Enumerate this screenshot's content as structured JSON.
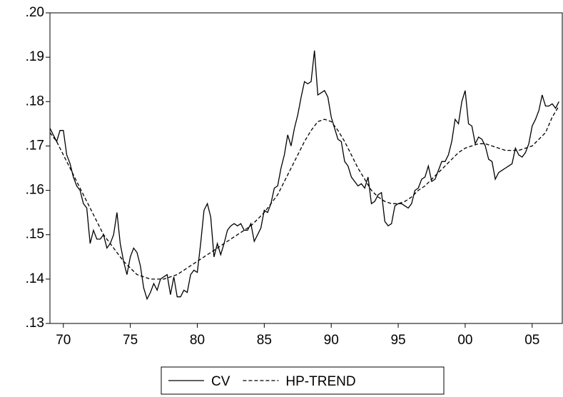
{
  "chart_data": {
    "type": "line",
    "xlim": [
      1969,
      2007.25
    ],
    "xticks": [
      {
        "value": 1970,
        "label": "70"
      },
      {
        "value": 1975,
        "label": "75"
      },
      {
        "value": 1980,
        "label": "80"
      },
      {
        "value": 1985,
        "label": "85"
      },
      {
        "value": 1990,
        "label": "90"
      },
      {
        "value": 1995,
        "label": "95"
      },
      {
        "value": 2000,
        "label": "00"
      },
      {
        "value": 2005,
        "label": "05"
      }
    ],
    "ylim": [
      0.13,
      0.2
    ],
    "yticks": [
      {
        "value": 0.13,
        "label": ".13"
      },
      {
        "value": 0.14,
        "label": ".14"
      },
      {
        "value": 0.15,
        "label": ".15"
      },
      {
        "value": 0.16,
        "label": ".16"
      },
      {
        "value": 0.17,
        "label": ".17"
      },
      {
        "value": 0.18,
        "label": ".18"
      },
      {
        "value": 0.19,
        "label": ".19"
      },
      {
        "value": 0.2,
        "label": ".20"
      }
    ],
    "series": [
      {
        "name": "CV",
        "color": "#000000",
        "dash": "solid",
        "x": [
          1969,
          1969.25,
          1969.5,
          1969.75,
          1970,
          1970.25,
          1970.5,
          1970.75,
          1971,
          1971.25,
          1971.5,
          1971.75,
          1972,
          1972.25,
          1972.5,
          1972.75,
          1973,
          1973.25,
          1973.5,
          1973.75,
          1974,
          1974.25,
          1974.5,
          1974.75,
          1975,
          1975.25,
          1975.5,
          1975.75,
          1976,
          1976.25,
          1976.5,
          1976.75,
          1977,
          1977.25,
          1977.5,
          1977.75,
          1978,
          1978.25,
          1978.5,
          1978.75,
          1979,
          1979.25,
          1979.5,
          1979.75,
          1980,
          1980.25,
          1980.5,
          1980.75,
          1981,
          1981.25,
          1981.5,
          1981.75,
          1982,
          1982.25,
          1982.5,
          1982.75,
          1983,
          1983.25,
          1983.5,
          1983.75,
          1984,
          1984.25,
          1984.5,
          1984.75,
          1985,
          1985.25,
          1985.5,
          1985.75,
          1986,
          1986.25,
          1986.5,
          1986.75,
          1987,
          1987.25,
          1987.5,
          1987.75,
          1988,
          1988.25,
          1988.5,
          1988.75,
          1989,
          1989.25,
          1989.5,
          1989.75,
          1990,
          1990.25,
          1990.5,
          1990.75,
          1991,
          1991.25,
          1991.5,
          1991.75,
          1992,
          1992.25,
          1992.5,
          1992.75,
          1993,
          1993.25,
          1993.5,
          1993.75,
          1994,
          1994.25,
          1994.5,
          1994.75,
          1995,
          1995.25,
          1995.5,
          1995.75,
          1996,
          1996.25,
          1996.5,
          1996.75,
          1997,
          1997.25,
          1997.5,
          1997.75,
          1998,
          1998.25,
          1998.5,
          1998.75,
          1999,
          1999.25,
          1999.5,
          1999.75,
          2000,
          2000.25,
          2000.5,
          2000.75,
          2001,
          2001.25,
          2001.5,
          2001.75,
          2002,
          2002.25,
          2002.5,
          2002.75,
          2003,
          2003.25,
          2003.5,
          2003.75,
          2004,
          2004.25,
          2004.5,
          2004.75,
          2005,
          2005.25,
          2005.5,
          2005.75,
          2006,
          2006.25,
          2006.5,
          2006.75,
          2007
        ],
        "values": [
          0.174,
          0.1725,
          0.171,
          0.1735,
          0.1735,
          0.168,
          0.166,
          0.163,
          0.161,
          0.16,
          0.157,
          0.156,
          0.148,
          0.151,
          0.149,
          0.149,
          0.15,
          0.147,
          0.148,
          0.15,
          0.155,
          0.148,
          0.144,
          0.141,
          0.145,
          0.147,
          0.146,
          0.143,
          0.138,
          0.1355,
          0.137,
          0.139,
          0.1375,
          0.14,
          0.1405,
          0.141,
          0.1365,
          0.1405,
          0.136,
          0.136,
          0.1375,
          0.137,
          0.141,
          0.142,
          0.1415,
          0.148,
          0.1555,
          0.157,
          0.154,
          0.145,
          0.148,
          0.1455,
          0.148,
          0.151,
          0.152,
          0.1525,
          0.152,
          0.1525,
          0.151,
          0.151,
          0.1525,
          0.1485,
          0.15,
          0.1515,
          0.1555,
          0.155,
          0.157,
          0.1605,
          0.161,
          0.165,
          0.168,
          0.1725,
          0.17,
          0.174,
          0.177,
          0.181,
          0.1845,
          0.184,
          0.1845,
          0.1915,
          0.1815,
          0.182,
          0.1825,
          0.181,
          0.1765,
          0.174,
          0.1715,
          0.171,
          0.1665,
          0.1655,
          0.163,
          0.162,
          0.161,
          0.1615,
          0.1605,
          0.163,
          0.157,
          0.1575,
          0.159,
          0.1595,
          0.153,
          0.152,
          0.1525,
          0.1565,
          0.157,
          0.157,
          0.1565,
          0.156,
          0.157,
          0.16,
          0.1605,
          0.1625,
          0.163,
          0.1655,
          0.162,
          0.1625,
          0.1645,
          0.1665,
          0.1665,
          0.168,
          0.171,
          0.176,
          0.175,
          0.18,
          0.1825,
          0.175,
          0.1745,
          0.1705,
          0.172,
          0.1715,
          0.17,
          0.167,
          0.1665,
          0.1625,
          0.164,
          0.1645,
          0.165,
          0.1655,
          0.166,
          0.1695,
          0.168,
          0.1675,
          0.1685,
          0.1705,
          0.1745,
          0.176,
          0.178,
          0.1815,
          0.179,
          0.179,
          0.1795,
          0.1785,
          0.18
        ]
      },
      {
        "name": "HP-TREND",
        "color": "#000000",
        "dash": "dashed",
        "x": [
          1969,
          1969.5,
          1970,
          1970.5,
          1971,
          1971.5,
          1972,
          1972.5,
          1973,
          1973.5,
          1974,
          1974.5,
          1975,
          1975.5,
          1976,
          1976.5,
          1977,
          1977.5,
          1978,
          1978.5,
          1979,
          1979.5,
          1980,
          1980.5,
          1981,
          1981.5,
          1982,
          1982.5,
          1983,
          1983.5,
          1984,
          1984.5,
          1985,
          1985.5,
          1986,
          1986.5,
          1987,
          1987.5,
          1988,
          1988.5,
          1989,
          1989.5,
          1990,
          1990.5,
          1991,
          1991.5,
          1992,
          1992.5,
          1993,
          1993.5,
          1994,
          1994.5,
          1995,
          1995.5,
          1996,
          1996.5,
          1997,
          1997.5,
          1998,
          1998.5,
          1999,
          1999.5,
          2000,
          2000.5,
          2001,
          2001.5,
          2002,
          2002.5,
          2003,
          2003.5,
          2004,
          2004.5,
          2005,
          2005.5,
          2006,
          2006.5,
          2007
        ],
        "values": [
          0.173,
          0.171,
          0.168,
          0.165,
          0.162,
          0.159,
          0.156,
          0.153,
          0.15,
          0.148,
          0.146,
          0.144,
          0.1425,
          0.141,
          0.1405,
          0.14,
          0.14,
          0.14,
          0.1405,
          0.141,
          0.142,
          0.143,
          0.144,
          0.145,
          0.146,
          0.147,
          0.148,
          0.149,
          0.15,
          0.151,
          0.152,
          0.1535,
          0.155,
          0.157,
          0.159,
          0.162,
          0.165,
          0.168,
          0.171,
          0.1735,
          0.1755,
          0.176,
          0.1755,
          0.1735,
          0.171,
          0.168,
          0.165,
          0.1625,
          0.16,
          0.1585,
          0.1575,
          0.157,
          0.157,
          0.1575,
          0.1585,
          0.16,
          0.161,
          0.1625,
          0.164,
          0.1655,
          0.167,
          0.1685,
          0.1695,
          0.17,
          0.1705,
          0.1705,
          0.17,
          0.1695,
          0.169,
          0.169,
          0.169,
          0.1695,
          0.17,
          0.1715,
          0.173,
          0.1765,
          0.179
        ]
      }
    ]
  }
}
